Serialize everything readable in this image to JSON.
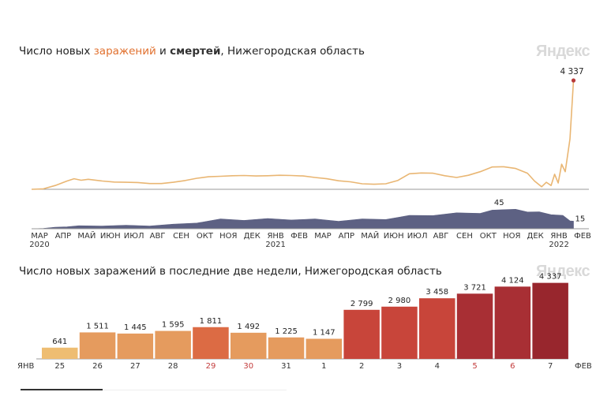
{
  "brand": "Яндекс",
  "top_chart": {
    "title_prefix": "Число новых ",
    "title_cases": "заражений",
    "title_mid": " и ",
    "title_deaths": "смертей",
    "title_suffix": ", Нижегородская область",
    "colors": {
      "cases_line": "#e9b673",
      "cases_last_dot": "#b83a3a",
      "deaths_area": "#5d6183",
      "axis": "#9a9a9a"
    }
  },
  "bottom_chart": {
    "title": "Число новых заражений в последние две недели, Нижегородская область",
    "start_label": "ЯНВ",
    "end_label": "ФЕВ"
  },
  "progress": {
    "fraction": 0.31
  },
  "chart_data": [
    {
      "type": "line",
      "name": "cases",
      "x_labels": [
        {
          "label": "МАР",
          "sub": "2020"
        },
        {
          "label": "АПР",
          "sub": ""
        },
        {
          "label": "МАЙ",
          "sub": ""
        },
        {
          "label": "ИЮН",
          "sub": ""
        },
        {
          "label": "ИЮЛ",
          "sub": ""
        },
        {
          "label": "АВГ",
          "sub": ""
        },
        {
          "label": "СЕН",
          "sub": ""
        },
        {
          "label": "ОКТ",
          "sub": ""
        },
        {
          "label": "НОЯ",
          "sub": ""
        },
        {
          "label": "ДЕК",
          "sub": ""
        },
        {
          "label": "ЯНВ",
          "sub": "2021"
        },
        {
          "label": "ФЕВ",
          "sub": ""
        },
        {
          "label": "МАР",
          "sub": ""
        },
        {
          "label": "АПР",
          "sub": ""
        },
        {
          "label": "МАЙ",
          "sub": ""
        },
        {
          "label": "ИЮН",
          "sub": ""
        },
        {
          "label": "ИЮЛ",
          "sub": ""
        },
        {
          "label": "АВГ",
          "sub": ""
        },
        {
          "label": "СЕН",
          "sub": ""
        },
        {
          "label": "ОКТ",
          "sub": ""
        },
        {
          "label": "НОЯ",
          "sub": ""
        },
        {
          "label": "ДЕК",
          "sub": ""
        },
        {
          "label": "ЯНВ",
          "sub": "2022"
        },
        {
          "label": "ФЕВ",
          "sub": ""
        }
      ],
      "points": [
        [
          0.0,
          0
        ],
        [
          0.5,
          20
        ],
        [
          1.0,
          150
        ],
        [
          1.5,
          330
        ],
        [
          1.8,
          420
        ],
        [
          2.1,
          360
        ],
        [
          2.4,
          400
        ],
        [
          3.0,
          330
        ],
        [
          3.5,
          290
        ],
        [
          4.0,
          280
        ],
        [
          4.5,
          270
        ],
        [
          5.0,
          230
        ],
        [
          5.5,
          230
        ],
        [
          6.0,
          280
        ],
        [
          6.5,
          350
        ],
        [
          7.0,
          440
        ],
        [
          7.5,
          500
        ],
        [
          8.0,
          520
        ],
        [
          8.5,
          540
        ],
        [
          9.0,
          550
        ],
        [
          9.5,
          530
        ],
        [
          10.0,
          540
        ],
        [
          10.5,
          560
        ],
        [
          11.0,
          550
        ],
        [
          11.5,
          530
        ],
        [
          12.0,
          470
        ],
        [
          12.5,
          420
        ],
        [
          13.0,
          340
        ],
        [
          13.5,
          300
        ],
        [
          14.0,
          220
        ],
        [
          14.5,
          200
        ],
        [
          15.0,
          220
        ],
        [
          15.5,
          350
        ],
        [
          16.0,
          620
        ],
        [
          16.5,
          650
        ],
        [
          17.0,
          640
        ],
        [
          17.5,
          540
        ],
        [
          18.0,
          470
        ],
        [
          18.5,
          560
        ],
        [
          19.0,
          700
        ],
        [
          19.5,
          890
        ],
        [
          20.0,
          900
        ],
        [
          20.5,
          830
        ],
        [
          21.0,
          640
        ],
        [
          21.3,
          330
        ],
        [
          21.6,
          100
        ],
        [
          21.8,
          280
        ],
        [
          22.0,
          150
        ],
        [
          22.15,
          600
        ],
        [
          22.3,
          250
        ],
        [
          22.45,
          1000
        ],
        [
          22.6,
          700
        ],
        [
          22.8,
          2000
        ],
        [
          22.95,
          4337
        ]
      ],
      "last_value": 4337,
      "last_value_label": "4 337",
      "ylim": [
        0,
        4400
      ]
    },
    {
      "type": "area",
      "name": "deaths",
      "x_range": [
        0,
        23
      ],
      "points": [
        [
          0.0,
          0
        ],
        [
          0.5,
          1
        ],
        [
          1.0,
          3
        ],
        [
          1.5,
          5
        ],
        [
          2.0,
          6
        ],
        [
          3.0,
          7
        ],
        [
          4.0,
          7
        ],
        [
          5.0,
          7
        ],
        [
          6.0,
          9
        ],
        [
          7.0,
          15
        ],
        [
          8.0,
          20
        ],
        [
          9.0,
          21
        ],
        [
          10.0,
          21
        ],
        [
          11.0,
          22
        ],
        [
          12.0,
          20
        ],
        [
          13.0,
          19
        ],
        [
          14.0,
          20
        ],
        [
          15.0,
          23
        ],
        [
          16.0,
          28
        ],
        [
          17.0,
          32
        ],
        [
          18.0,
          34
        ],
        [
          19.0,
          37
        ],
        [
          19.5,
          40
        ],
        [
          19.8,
          45
        ],
        [
          20.5,
          42
        ],
        [
          21.0,
          40
        ],
        [
          21.5,
          36
        ],
        [
          22.0,
          34
        ],
        [
          22.5,
          28
        ],
        [
          22.8,
          20
        ],
        [
          22.95,
          15
        ]
      ],
      "peak_value": 45,
      "peak_x": 19.8,
      "peak_label": "45",
      "last_value": 15,
      "last_value_label": "15",
      "ylim": [
        0,
        50
      ]
    },
    {
      "type": "bar",
      "title": "Число новых заражений в последние две недели, Нижегородская область",
      "categories": [
        "25",
        "26",
        "27",
        "28",
        "29",
        "30",
        "31",
        "1",
        "2",
        "3",
        "4",
        "5",
        "6",
        "7"
      ],
      "values": [
        641,
        1511,
        1445,
        1595,
        1811,
        1492,
        1225,
        1147,
        2799,
        2980,
        3458,
        3721,
        4124,
        4337
      ],
      "value_labels": [
        "641",
        "1 511",
        "1 445",
        "1 595",
        "1 811",
        "1 492",
        "1 225",
        "1 147",
        "2 799",
        "2 980",
        "3 458",
        "3 721",
        "4 124",
        "4 337"
      ],
      "bar_colors": [
        "#eebd72",
        "#e59b5e",
        "#e59b5e",
        "#e59b5e",
        "#dc6b44",
        "#e59b5e",
        "#e59b5e",
        "#e59b5e",
        "#c8453a",
        "#c8453a",
        "#c8453a",
        "#a82f34",
        "#a82f34",
        "#98262d"
      ],
      "label_colors": [
        "#333333",
        "#333333",
        "#333333",
        "#333333",
        "#c33c3c",
        "#c33c3c",
        "#333333",
        "#333333",
        "#333333",
        "#333333",
        "#333333",
        "#c33c3c",
        "#c33c3c",
        "#333333"
      ],
      "ylim": [
        0,
        4500
      ]
    }
  ]
}
